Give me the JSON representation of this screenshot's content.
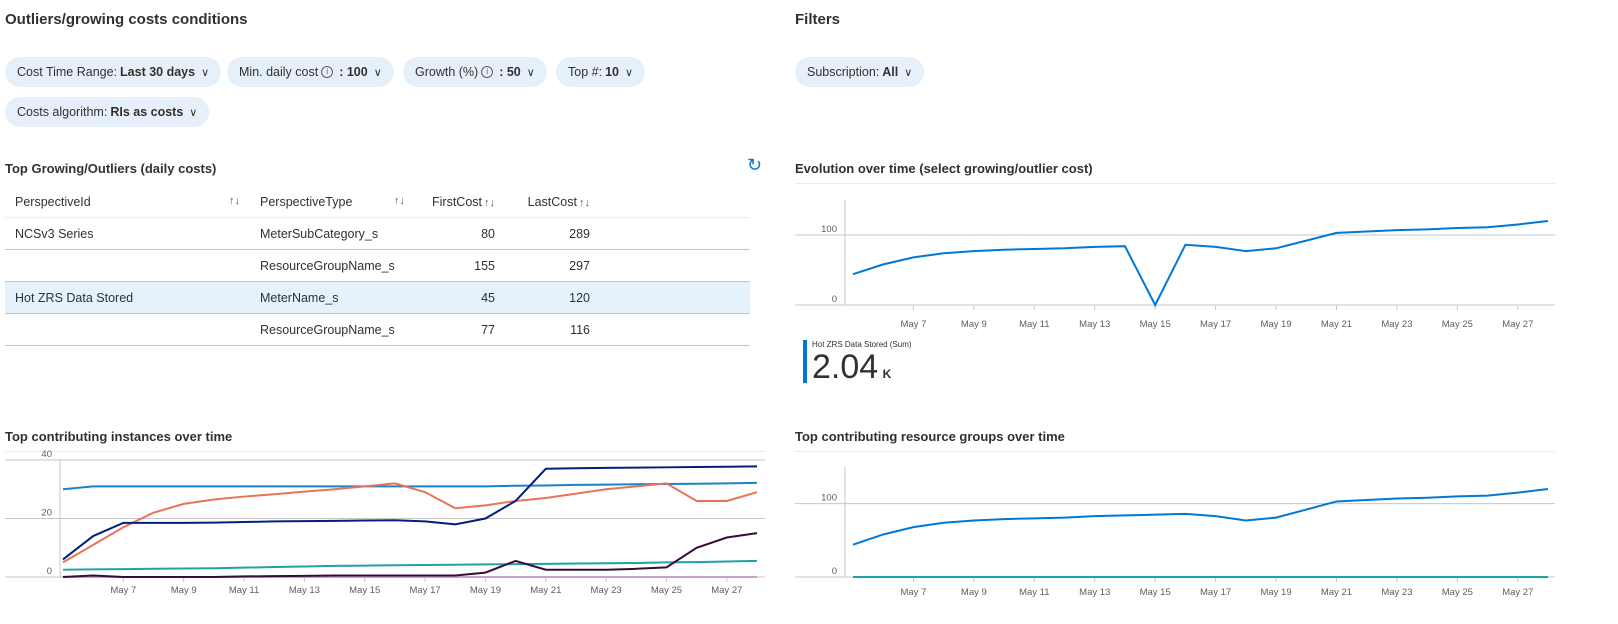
{
  "left_title": "Outliers/growing costs conditions",
  "right_title": "Filters",
  "filters": [
    {
      "label": "Cost Time Range:",
      "value": "Last 30 days",
      "info": false
    },
    {
      "label": "Min. daily cost",
      "value": ": 100",
      "info": true
    },
    {
      "label": "Growth (%)",
      "value": ": 50",
      "info": true
    },
    {
      "label": "Top #:",
      "value": "10",
      "info": false
    },
    {
      "label": "Costs algorithm:",
      "value": "RIs as costs",
      "info": false
    }
  ],
  "subscription_filter": {
    "label": "Subscription:",
    "value": "All"
  },
  "table": {
    "title": "Top Growing/Outliers (daily costs)",
    "columns": [
      "PerspectiveId",
      "PerspectiveType",
      "FirstCost",
      "LastCost"
    ],
    "rows": [
      [
        "NCSv3 Series",
        "MeterSubCategory_s",
        "80",
        "289"
      ],
      [
        "",
        "ResourceGroupName_s",
        "155",
        "297"
      ],
      [
        "Hot ZRS Data Stored",
        "MeterName_s",
        "45",
        "120"
      ],
      [
        "",
        "ResourceGroupName_s",
        "77",
        "116"
      ]
    ],
    "selected_row": 2
  },
  "icons": {
    "refresh": "refresh-icon",
    "chevron": "chevron-down-icon",
    "info": "info-icon",
    "sort": "sort-icon"
  },
  "summary": {
    "label": "Hot ZRS Data Stored (Sum)",
    "value": "2.04",
    "unit": "K",
    "color": "#0078d4"
  },
  "chart_data": [
    {
      "title": "Evolution over time (select growing/outlier cost)",
      "type": "line",
      "x": [
        "May 5",
        "May 6",
        "May 7",
        "May 8",
        "May 9",
        "May 10",
        "May 11",
        "May 12",
        "May 13",
        "May 14",
        "May 15",
        "May 16",
        "May 17",
        "May 18",
        "May 19",
        "May 20",
        "May 21",
        "May 22",
        "May 23",
        "May 24",
        "May 25",
        "May 26",
        "May 27",
        "May 28"
      ],
      "xticks": [
        "May 7",
        "May 9",
        "May 11",
        "May 13",
        "May 15",
        "May 17",
        "May 19",
        "May 21",
        "May 23",
        "May 25",
        "May 27"
      ],
      "yticks": [
        0,
        100
      ],
      "ylim": [
        0,
        150
      ],
      "grid": true,
      "series": [
        {
          "color": "#0078d4",
          "values": [
            44,
            58,
            68,
            74,
            77,
            79,
            80,
            81,
            83,
            84,
            0,
            86,
            83,
            77,
            81,
            92,
            103,
            105,
            107,
            108,
            110,
            111,
            115,
            120
          ]
        }
      ]
    },
    {
      "title": "Top contributing instances over time",
      "type": "line",
      "x": [
        "May 5",
        "May 6",
        "May 7",
        "May 8",
        "May 9",
        "May 10",
        "May 11",
        "May 12",
        "May 13",
        "May 14",
        "May 15",
        "May 16",
        "May 17",
        "May 18",
        "May 19",
        "May 20",
        "May 21",
        "May 22",
        "May 23",
        "May 24",
        "May 25",
        "May 26",
        "May 27",
        "May 28"
      ],
      "xticks": [
        "May 7",
        "May 9",
        "May 11",
        "May 13",
        "May 15",
        "May 17",
        "May 19",
        "May 21",
        "May 23",
        "May 25",
        "May 27"
      ],
      "yticks": [
        0,
        20,
        40
      ],
      "ylim": [
        0,
        40
      ],
      "grid": true,
      "series": [
        {
          "color": "#c8a0c8",
          "values": [
            0,
            0,
            0,
            0,
            0,
            0,
            0,
            0,
            0,
            0,
            0,
            0,
            0,
            0,
            0,
            0,
            0,
            0,
            0,
            0,
            0,
            0,
            0,
            0
          ]
        },
        {
          "color": "#1f82c8",
          "values": [
            30,
            31,
            31,
            31,
            31,
            31,
            31,
            31,
            31,
            31,
            31,
            31,
            31,
            31,
            31,
            31.2,
            31.3,
            31.5,
            31.6,
            31.7,
            31.8,
            31.9,
            32,
            32.2
          ]
        },
        {
          "color": "#e8735a",
          "values": [
            5,
            11,
            17,
            22,
            25,
            26.5,
            27.5,
            28.3,
            29.2,
            30,
            31,
            32,
            29,
            23.5,
            24.5,
            26,
            27,
            28.5,
            30,
            31,
            32,
            26,
            26,
            29
          ]
        },
        {
          "color": "#001f80",
          "values": [
            6,
            14,
            18.5,
            18.5,
            18.5,
            18.6,
            18.8,
            19,
            19.1,
            19.2,
            19.3,
            19.4,
            19,
            18,
            20,
            26,
            37,
            37.2,
            37.3,
            37.4,
            37.5,
            37.6,
            37.7,
            37.8
          ]
        },
        {
          "color": "#1fa2a8",
          "values": [
            2.5,
            2.6,
            2.7,
            2.8,
            2.9,
            3,
            3.2,
            3.4,
            3.6,
            3.8,
            3.9,
            4,
            4.1,
            4.2,
            4.3,
            4.4,
            4.5,
            4.6,
            4.7,
            4.8,
            5,
            5.1,
            5.3,
            5.5
          ]
        },
        {
          "color": "#3a0a3a",
          "values": [
            0,
            0.5,
            0,
            0,
            0,
            0,
            0.2,
            0.3,
            0.4,
            0.5,
            0.5,
            0.5,
            0.5,
            0.5,
            1.5,
            5.5,
            2.5,
            2.5,
            2.5,
            2.8,
            3.3,
            10,
            13.5,
            15
          ]
        }
      ]
    },
    {
      "title": "Top contributing resource groups over time",
      "type": "line",
      "x": [
        "May 5",
        "May 6",
        "May 7",
        "May 8",
        "May 9",
        "May 10",
        "May 11",
        "May 12",
        "May 13",
        "May 14",
        "May 15",
        "May 16",
        "May 17",
        "May 18",
        "May 19",
        "May 20",
        "May 21",
        "May 22",
        "May 23",
        "May 24",
        "May 25",
        "May 26",
        "May 27",
        "May 28"
      ],
      "xticks": [
        "May 7",
        "May 9",
        "May 11",
        "May 13",
        "May 15",
        "May 17",
        "May 19",
        "May 21",
        "May 23",
        "May 25",
        "May 27"
      ],
      "yticks": [
        0,
        100
      ],
      "ylim": [
        0,
        150
      ],
      "grid": true,
      "series": [
        {
          "color": "#1fa2a8",
          "values": [
            0,
            0,
            0,
            0,
            0,
            0,
            0,
            0,
            0,
            0,
            0,
            0,
            0,
            0,
            0,
            0,
            0,
            0,
            0,
            0,
            0,
            0,
            0,
            0
          ]
        },
        {
          "color": "#0078d4",
          "values": [
            44,
            58,
            68,
            74,
            77,
            79,
            80,
            81,
            83,
            84,
            85,
            86,
            83,
            77,
            81,
            92,
            103,
            105,
            107,
            108,
            110,
            111,
            115,
            120
          ]
        }
      ]
    }
  ]
}
